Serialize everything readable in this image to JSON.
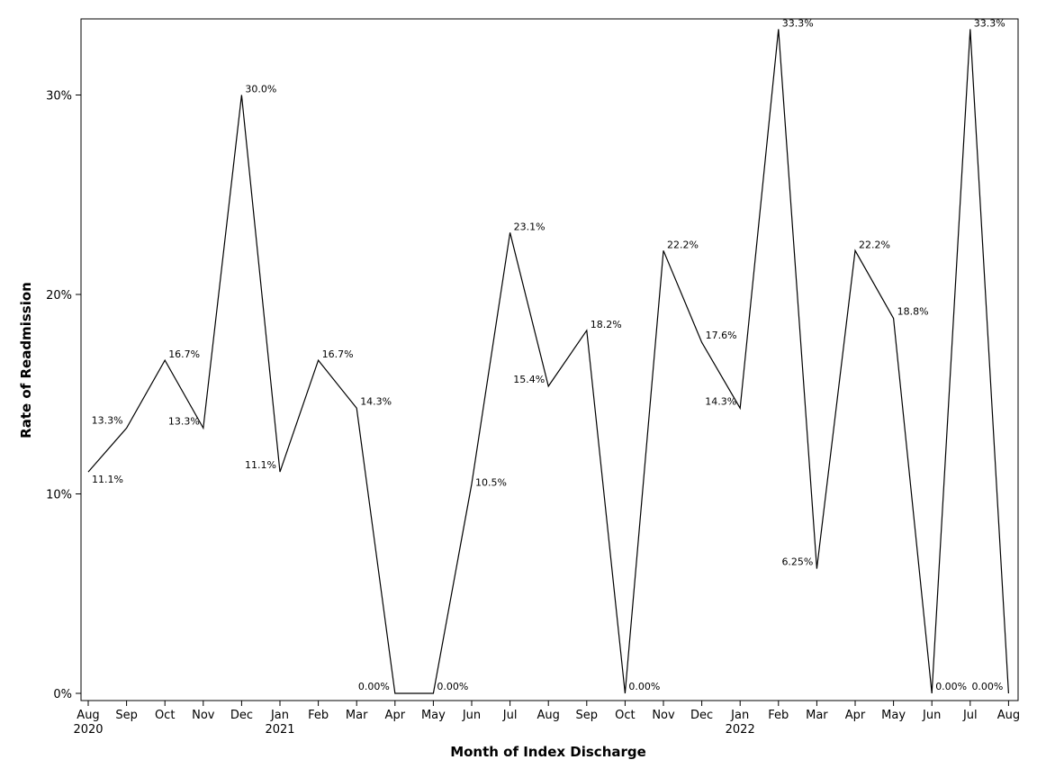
{
  "chart_data": {
    "type": "line",
    "title": "",
    "xlabel": "Month of Index Discharge",
    "ylabel": "Rate of Readmission",
    "ylim": [
      0,
      33.3
    ],
    "yticks": [
      {
        "value": 0,
        "label": "0%"
      },
      {
        "value": 10,
        "label": "10%"
      },
      {
        "value": 20,
        "label": "20%"
      },
      {
        "value": 30,
        "label": "30%"
      }
    ],
    "categories": [
      "Aug",
      "Sep",
      "Oct",
      "Nov",
      "Dec",
      "Jan",
      "Feb",
      "Mar",
      "Apr",
      "May",
      "Jun",
      "Jul",
      "Aug",
      "Sep",
      "Oct",
      "Nov",
      "Dec",
      "Jan",
      "Feb",
      "Mar",
      "Apr",
      "May",
      "Jun",
      "Jul",
      "Aug"
    ],
    "year_labels": [
      "2020",
      "",
      "",
      "",
      "",
      "2021",
      "",
      "",
      "",
      "",
      "",
      "",
      "",
      "",
      "",
      "",
      "",
      "2022",
      "",
      "",
      "",
      "",
      "",
      "",
      ""
    ],
    "values": [
      11.1,
      13.3,
      16.7,
      13.3,
      30.0,
      11.1,
      16.7,
      14.3,
      0.0,
      0.0,
      10.5,
      23.1,
      15.4,
      18.2,
      0.0,
      22.2,
      17.6,
      14.3,
      33.3,
      6.25,
      22.2,
      18.8,
      0.0,
      33.3,
      0.0
    ],
    "data_labels": [
      "11.1%",
      "13.3%",
      "16.7%",
      "13.3%",
      "30.0%",
      "11.1%",
      "16.7%",
      "14.3%",
      "0.00%",
      "0.00%",
      "10.5%",
      "23.1%",
      "15.4%",
      "18.2%",
      "0.00%",
      "22.2%",
      "17.6%",
      "14.3%",
      "33.3%",
      "6.25%",
      "22.2%",
      "18.8%",
      "0.00%",
      "33.3%",
      "0.00%"
    ],
    "grid": false,
    "legend": "none",
    "line_color": "#000000"
  }
}
